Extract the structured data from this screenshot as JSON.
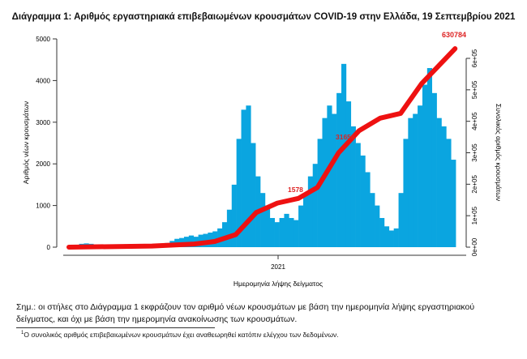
{
  "chart_data": {
    "type": "bar",
    "title": "Διάγραμμα 1: Αριθμός εργαστηριακά επιβεβαιωμένων κρουσμάτων COVID-19 στην Ελλάδα, 19 Σεπτεμβρίου 2021",
    "xlabel": "Ημερομηνία λήψης δείγματος",
    "ylabel": "Αριθμός νέων κρουσμάτων",
    "y2label": "Συνολικός αριθμός κρουσμάτων",
    "x_ticks": [
      "2021"
    ],
    "y_ticks": [
      "0",
      "1000",
      "2000",
      "3000",
      "4000",
      "5000"
    ],
    "y2_ticks": [
      "0e+00",
      "1e+05",
      "2e+05",
      "3e+05",
      "4e+05",
      "5e+05",
      "6e+05"
    ],
    "ylim": [
      0,
      5000
    ],
    "y2lim": [
      0,
      600000
    ],
    "bar_color": "#0aa5e0",
    "line_color": "#ee1111",
    "bars": {
      "start_week": "2020-03-02",
      "values": [
        20,
        50,
        80,
        90,
        80,
        60,
        40,
        30,
        20,
        15,
        15,
        15,
        15,
        20,
        30,
        40,
        40,
        50,
        60,
        80,
        100,
        150,
        200,
        220,
        250,
        280,
        250,
        300,
        320,
        350,
        380,
        450,
        600,
        900,
        1500,
        2600,
        3300,
        3400,
        2500,
        1700,
        1300,
        1000,
        700,
        600,
        700,
        800,
        700,
        650,
        1000,
        1300,
        1700,
        2000,
        2600,
        3100,
        3400,
        3200,
        3700,
        4400,
        3500,
        2900,
        2500,
        2200,
        1800,
        1300,
        1000,
        700,
        500,
        400,
        450,
        1300,
        2600,
        3100,
        3200,
        3400,
        3900,
        4300,
        3700,
        3100,
        2900,
        2600,
        2100
      ]
    },
    "cumulative": {
      "dates": [
        "2020-03-01",
        "2020-07-01",
        "2020-09-01",
        "2020-10-01",
        "2020-11-01",
        "2020-12-01",
        "2021-01-01",
        "2021-02-01",
        "2021-03-01",
        "2021-04-01",
        "2021-05-01",
        "2021-06-01",
        "2021-07-01",
        "2021-08-01",
        "2021-09-19"
      ],
      "values": [
        0,
        3500,
        10000,
        18000,
        40000,
        110000,
        140000,
        155000,
        190000,
        300000,
        370000,
        410000,
        425000,
        520000,
        630784
      ]
    },
    "annotations": [
      "1578",
      "31656",
      "630784"
    ]
  }
}
